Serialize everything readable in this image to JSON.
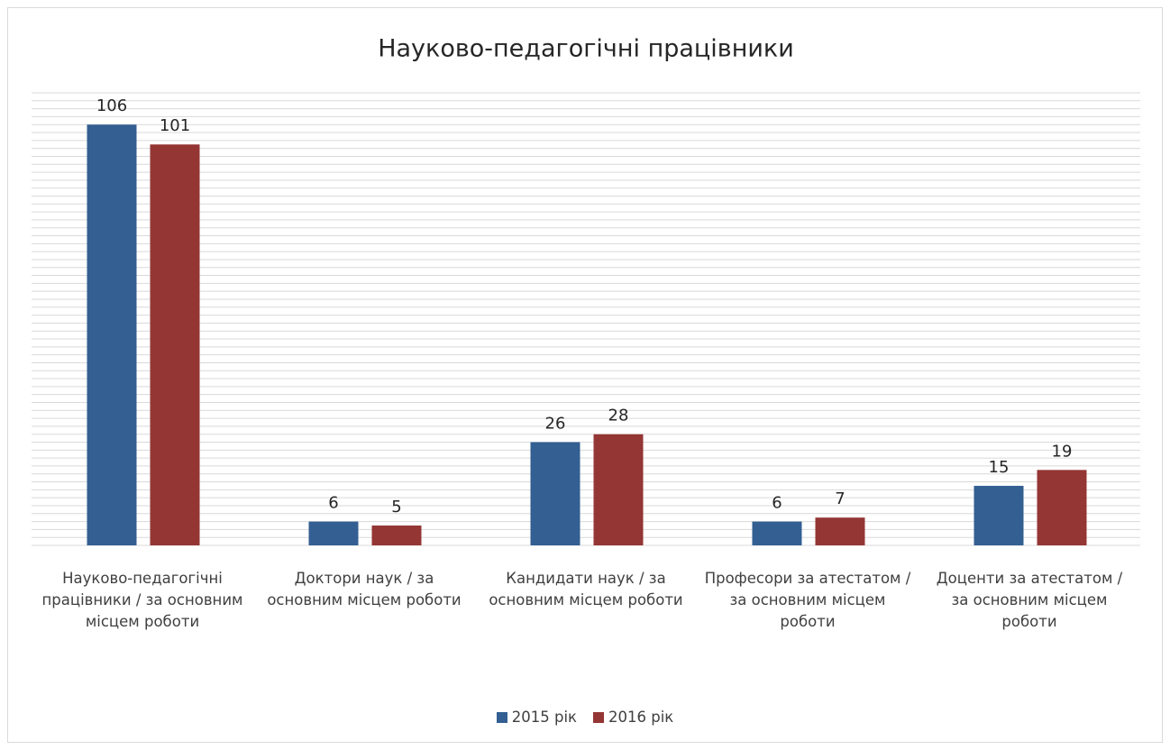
{
  "chart_data": {
    "type": "bar",
    "title": "Науково-педагогічні працівники",
    "categories": [
      "Науково-педагогічні працівники / за основним місцем роботи",
      "Доктори наук / за основним місцем роботи",
      "Кандидати наук / за основним місцем роботи",
      "Професори за атестатом / за основним місцем роботи",
      "Доценти за атестатом / за основним місцем роботи"
    ],
    "series": [
      {
        "name": "2015 рік",
        "color": "#335f92",
        "values": [
          106,
          6,
          26,
          6,
          15
        ]
      },
      {
        "name": "2016 рік",
        "color": "#943634",
        "values": [
          101,
          5,
          28,
          7,
          19
        ]
      }
    ],
    "ylim": [
      0,
      114
    ],
    "yticks": [
      0,
      2,
      4,
      6,
      8,
      10,
      12,
      14,
      16,
      18,
      20,
      22,
      24,
      26,
      28,
      30,
      32,
      34,
      36,
      38,
      40,
      42,
      44,
      46,
      48,
      50,
      52,
      54,
      56,
      58,
      60,
      62,
      64,
      66,
      68,
      70,
      72,
      74,
      76,
      78,
      80,
      82,
      84,
      86,
      88,
      90,
      92,
      94,
      96,
      98,
      100,
      102,
      104,
      106,
      108,
      110,
      112,
      114
    ],
    "grid": true,
    "tick_labels": false,
    "legend": "bottom"
  }
}
